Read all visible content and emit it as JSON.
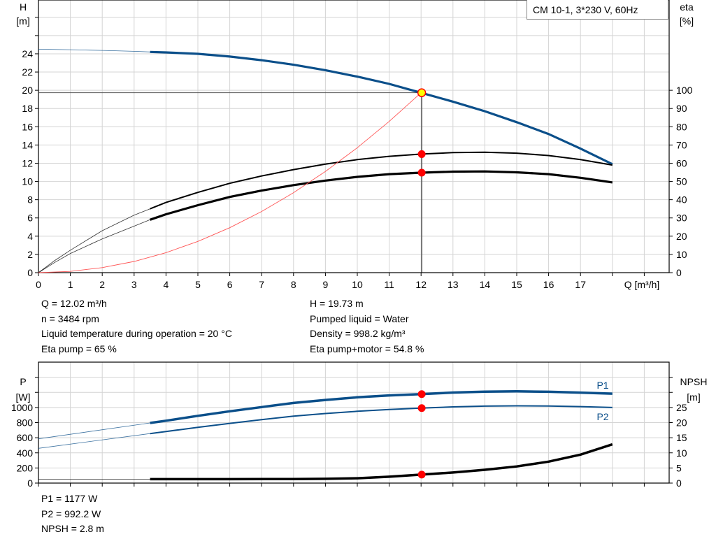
{
  "chart_data": [
    {
      "type": "line",
      "title": "CM 10-1, 3*230 V, 60Hz",
      "xlabel": "Q [m³/h]",
      "ylabel": {
        "name": "H",
        "unit": "[m]"
      },
      "y2label": {
        "name": "eta",
        "unit": "[%]"
      },
      "xlim": [
        0,
        19.8
      ],
      "ylim": [
        0,
        29.9
      ],
      "y2lim": [
        0,
        149.5
      ],
      "grid": true,
      "x_ticks": [
        0,
        1,
        2,
        3,
        4,
        5,
        6,
        7,
        8,
        9,
        10,
        11,
        12,
        13,
        14,
        15,
        16,
        17
      ],
      "y_ticks": [
        0,
        2,
        4,
        6,
        8,
        10,
        12,
        14,
        16,
        18,
        20,
        22,
        24
      ],
      "y2_ticks": [
        0,
        10,
        20,
        30,
        40,
        50,
        60,
        70,
        80,
        90,
        100
      ],
      "series": [
        {
          "axis": "H",
          "color": "#0b4f8a",
          "thin": [
            [
              0,
              24.5
            ],
            [
              1,
              24.45
            ],
            [
              2,
              24.37
            ],
            [
              3,
              24.27
            ],
            [
              3.5,
              24.2
            ]
          ],
          "thick": [
            [
              3.5,
              24.2
            ],
            [
              4,
              24.15
            ],
            [
              5,
              24.0
            ],
            [
              6,
              23.7
            ],
            [
              7,
              23.3
            ],
            [
              8,
              22.8
            ],
            [
              9,
              22.2
            ],
            [
              10,
              21.5
            ],
            [
              11,
              20.7
            ],
            [
              12,
              19.73
            ],
            [
              13,
              18.75
            ],
            [
              14,
              17.7
            ],
            [
              15,
              16.5
            ],
            [
              16,
              15.2
            ],
            [
              17,
              13.6
            ],
            [
              18,
              11.9
            ]
          ]
        },
        {
          "axis": "eta",
          "color": "#000000",
          "thin": [
            [
              0,
              0
            ],
            [
              0.5,
              6.5
            ],
            [
              1,
              12.3
            ],
            [
              2,
              23
            ],
            [
              3,
              31.5
            ],
            [
              3.5,
              35
            ]
          ],
          "thick": [
            [
              3.5,
              35
            ],
            [
              4,
              38.5
            ],
            [
              5,
              44
            ],
            [
              6,
              49
            ],
            [
              7,
              53
            ],
            [
              8,
              56.5
            ],
            [
              9,
              59.5
            ],
            [
              10,
              62
            ],
            [
              11,
              63.8
            ],
            [
              12,
              65
            ],
            [
              13,
              65.8
            ],
            [
              14,
              66
            ],
            [
              15,
              65.5
            ],
            [
              16,
              64.2
            ],
            [
              17,
              62
            ],
            [
              18,
              59
            ]
          ]
        },
        {
          "axis": "eta",
          "color": "#000000",
          "thin": [
            [
              0,
              0
            ],
            [
              0.5,
              5.5
            ],
            [
              1,
              10.5
            ],
            [
              2,
              18.5
            ],
            [
              3,
              25.5
            ],
            [
              3.5,
              29
            ]
          ],
          "thick": [
            [
              3.5,
              29
            ],
            [
              4,
              32
            ],
            [
              5,
              37
            ],
            [
              6,
              41.5
            ],
            [
              7,
              45
            ],
            [
              8,
              48
            ],
            [
              9,
              50.5
            ],
            [
              10,
              52.5
            ],
            [
              11,
              54
            ],
            [
              12,
              54.8
            ],
            [
              13,
              55.4
            ],
            [
              14,
              55.5
            ],
            [
              15,
              55
            ],
            [
              16,
              54
            ],
            [
              17,
              52
            ],
            [
              18,
              49.5
            ]
          ]
        },
        {
          "axis": "H",
          "color": "#ff5555",
          "system_curve": [
            [
              0,
              0
            ],
            [
              1,
              0.14
            ],
            [
              2,
              0.55
            ],
            [
              3,
              1.23
            ],
            [
              4,
              2.19
            ],
            [
              5,
              3.43
            ],
            [
              6,
              4.93
            ],
            [
              7,
              6.71
            ],
            [
              8,
              8.77
            ],
            [
              9,
              11.1
            ],
            [
              10,
              13.7
            ],
            [
              11,
              16.58
            ],
            [
              12,
              19.73
            ]
          ]
        }
      ],
      "operating_point": {
        "Q": 12.02,
        "H": 19.73,
        "eta_pump": 65,
        "eta_total": 54.8
      }
    },
    {
      "type": "line",
      "ylabel": {
        "name": "P",
        "unit": "[W]"
      },
      "y2label": {
        "name": "NPSH",
        "unit": "[m]"
      },
      "xlim": [
        0,
        19.8
      ],
      "ylim": [
        0,
        1600
      ],
      "y2lim": [
        0,
        40
      ],
      "grid": true,
      "y_ticks": [
        0,
        200,
        400,
        600,
        800,
        1000
      ],
      "y2_ticks": [
        0,
        5,
        10,
        15,
        20,
        25
      ],
      "series": [
        {
          "name": "P1",
          "axis": "P",
          "color": "#0b4f8a",
          "thin": [
            [
              0,
              585
            ],
            [
              3.5,
              795
            ]
          ],
          "thick": [
            [
              3.5,
              795
            ],
            [
              4,
              825
            ],
            [
              5,
              890
            ],
            [
              6,
              950
            ],
            [
              7,
              1005
            ],
            [
              8,
              1060
            ],
            [
              9,
              1100
            ],
            [
              10,
              1135
            ],
            [
              11,
              1160
            ],
            [
              12,
              1177
            ],
            [
              13,
              1198
            ],
            [
              14,
              1210
            ],
            [
              15,
              1213
            ],
            [
              16,
              1208
            ],
            [
              17,
              1197
            ],
            [
              18,
              1183
            ]
          ]
        },
        {
          "name": "P2",
          "axis": "P",
          "color": "#0b4f8a",
          "thin": [
            [
              0,
              460
            ],
            [
              3.5,
              655
            ]
          ],
          "thick": [
            [
              3.5,
              655
            ],
            [
              4,
              682
            ],
            [
              5,
              738
            ],
            [
              6,
              790
            ],
            [
              7,
              840
            ],
            [
              8,
              885
            ],
            [
              9,
              920
            ],
            [
              10,
              950
            ],
            [
              11,
              973
            ],
            [
              12,
              992.2
            ],
            [
              13,
              1008
            ],
            [
              14,
              1018
            ],
            [
              15,
              1022
            ],
            [
              16,
              1020
            ],
            [
              17,
              1012
            ],
            [
              18,
              1000
            ]
          ]
        },
        {
          "axis": "NPSH",
          "color": "#000000",
          "thin": [
            [
              0,
              1.3
            ],
            [
              3.5,
              1.3
            ]
          ],
          "thick": [
            [
              3.5,
              1.3
            ],
            [
              6,
              1.3
            ],
            [
              8,
              1.35
            ],
            [
              9,
              1.4
            ],
            [
              10,
              1.6
            ],
            [
              11,
              2.1
            ],
            [
              12,
              2.8
            ],
            [
              13,
              3.5
            ],
            [
              14,
              4.4
            ],
            [
              15,
              5.5
            ],
            [
              16,
              7.1
            ],
            [
              17,
              9.4
            ],
            [
              18,
              12.8
            ]
          ]
        }
      ],
      "operating_point": {
        "Q": 12.02,
        "P1": 1177,
        "P2": 992.2,
        "NPSH": 2.8
      }
    }
  ],
  "info_top_left": [
    "Q = 12.02 m³/h",
    "n = 3484 rpm",
    "Liquid temperature during operation = 20 °C",
    "Eta pump = 65 %"
  ],
  "info_top_right": [
    "H = 19.73 m",
    "Pumped liquid = Water",
    "Density = 998.2 kg/m³",
    "Eta pump+motor = 54.8 %"
  ],
  "info_bottom": [
    "P1 = 1177 W",
    "P2 = 992.2 W",
    "NPSH = 2.8 m"
  ],
  "colors": {
    "head": "#0b4f8a",
    "power": "#0b4f8a",
    "system": "#ff5555",
    "point": "#ff0000",
    "duty_point": "#ffff00",
    "grid": "#d4d4d4"
  }
}
